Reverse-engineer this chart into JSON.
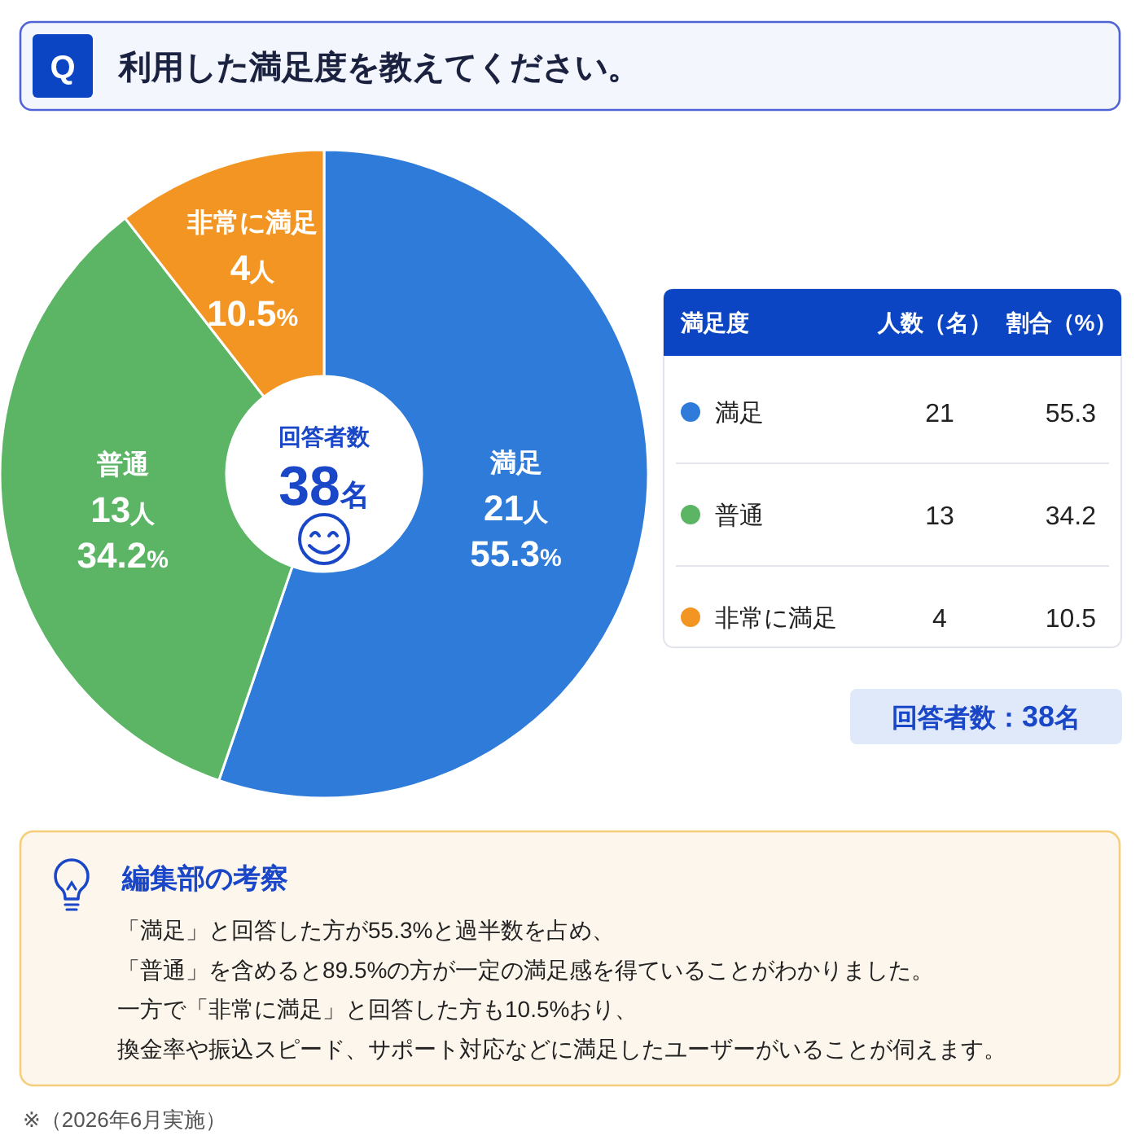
{
  "chart_data": [
    {
      "type": "donut",
      "title": "利用した満足度を教えてください。",
      "categories": [
        "満足",
        "普通",
        "非常に満足"
      ],
      "values": [
        21,
        13,
        4
      ],
      "colors": [
        "#2e7bd9",
        "#5bb565",
        "#f39522"
      ],
      "value_labels": [
        "21人\n55.3%",
        "13人\n34.2%",
        "4人\n10.5%"
      ],
      "annotations": [
        "Q",
        "回答者数",
        "38名"
      ]
    },
    {
      "type": "other",
      "ylabel": "満足度",
      "categories": [
        "満足",
        "普通",
        "非常に満足"
      ],
      "colors": [
        "#2e7bd9",
        "#5bb565",
        "#f39522"
      ],
      "series": [
        {
          "name": "人数（名）",
          "values": [
            21,
            13,
            4
          ]
        },
        {
          "name": "割合（%）",
          "values": [
            55.3,
            34.2,
            10.5
          ]
        }
      ],
      "data_labels": true,
      "annotations": [
        "回答者数：38名"
      ]
    },
    {
      "type": "other",
      "title": "編集部の考察",
      "annotations": [
        "「満足」と回答した方が55.3%と過半数を占め、",
        "「普通」を含めると89.5%の方が一定の満足感を得ていることがわかりました。",
        "一方で「非常に満足」と回答した方も10.5%おり、",
        "換金率や振込スピード、サポート対応などに満足したユーザーがいることが伺えます。"
      ]
    },
    {
      "type": "other",
      "annotations": [
        "※（2026年6月実施）"
      ]
    }
  ]
}
